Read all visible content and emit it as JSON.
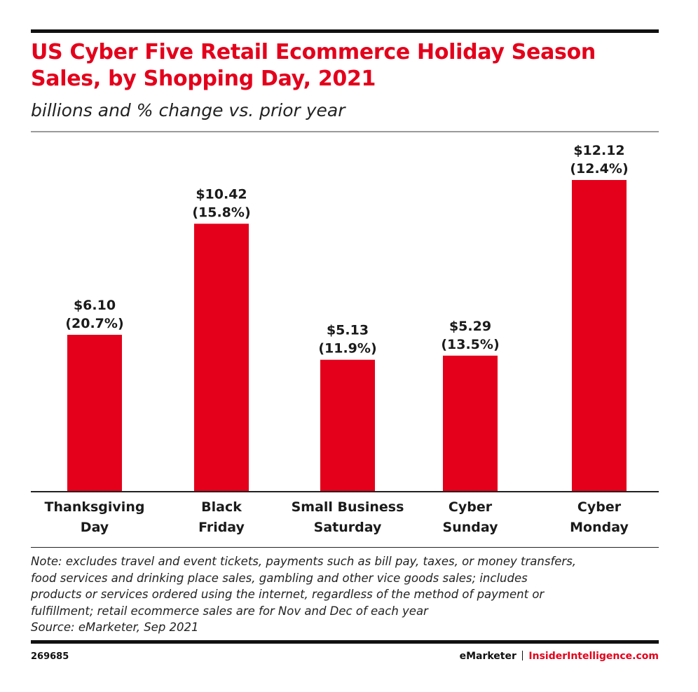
{
  "header": {
    "title": "US Cyber Five Retail Ecommerce Holiday Season Sales, by Shopping Day, 2021",
    "subtitle": "billions and % change vs. prior year"
  },
  "chart_data": {
    "type": "bar",
    "title": "US Cyber Five Retail Ecommerce Holiday Season Sales, by Shopping Day, 2021",
    "subtitle": "billions and % change vs. prior year",
    "categories": [
      [
        "Thanksgiving",
        "Day"
      ],
      [
        "Black",
        "Friday"
      ],
      [
        "Small Business",
        "Saturday"
      ],
      [
        "Cyber",
        "Sunday"
      ],
      [
        "Cyber",
        "Monday"
      ]
    ],
    "values": [
      6.1,
      10.42,
      5.13,
      5.29,
      12.12
    ],
    "value_labels": [
      "$6.10",
      "$10.42",
      "$5.13",
      "$5.29",
      "$12.12"
    ],
    "change_labels": [
      "(20.7%)",
      "(15.8%)",
      "(11.9%)",
      "(13.5%)",
      "(12.4%)"
    ],
    "ylim": [
      0,
      12.12
    ],
    "grid": false,
    "bar_color": "#e4001b"
  },
  "footer": {
    "note_lines": [
      "Note: excludes travel and event tickets, payments such as bill pay, taxes, or money transfers,",
      "food services and drinking place sales, gambling and other vice goods sales; includes",
      "products or services ordered using the internet, regardless of the method of payment or",
      "fulfillment; retail ecommerce sales are for Nov and Dec of each year"
    ],
    "source": "Source: eMarketer, Sep 2021",
    "chart_id": "269685",
    "brand_left": "eMarketer",
    "brand_right": "InsiderIntelligence.com"
  },
  "colors": {
    "accent": "#e4001b",
    "rule": "#111111"
  }
}
